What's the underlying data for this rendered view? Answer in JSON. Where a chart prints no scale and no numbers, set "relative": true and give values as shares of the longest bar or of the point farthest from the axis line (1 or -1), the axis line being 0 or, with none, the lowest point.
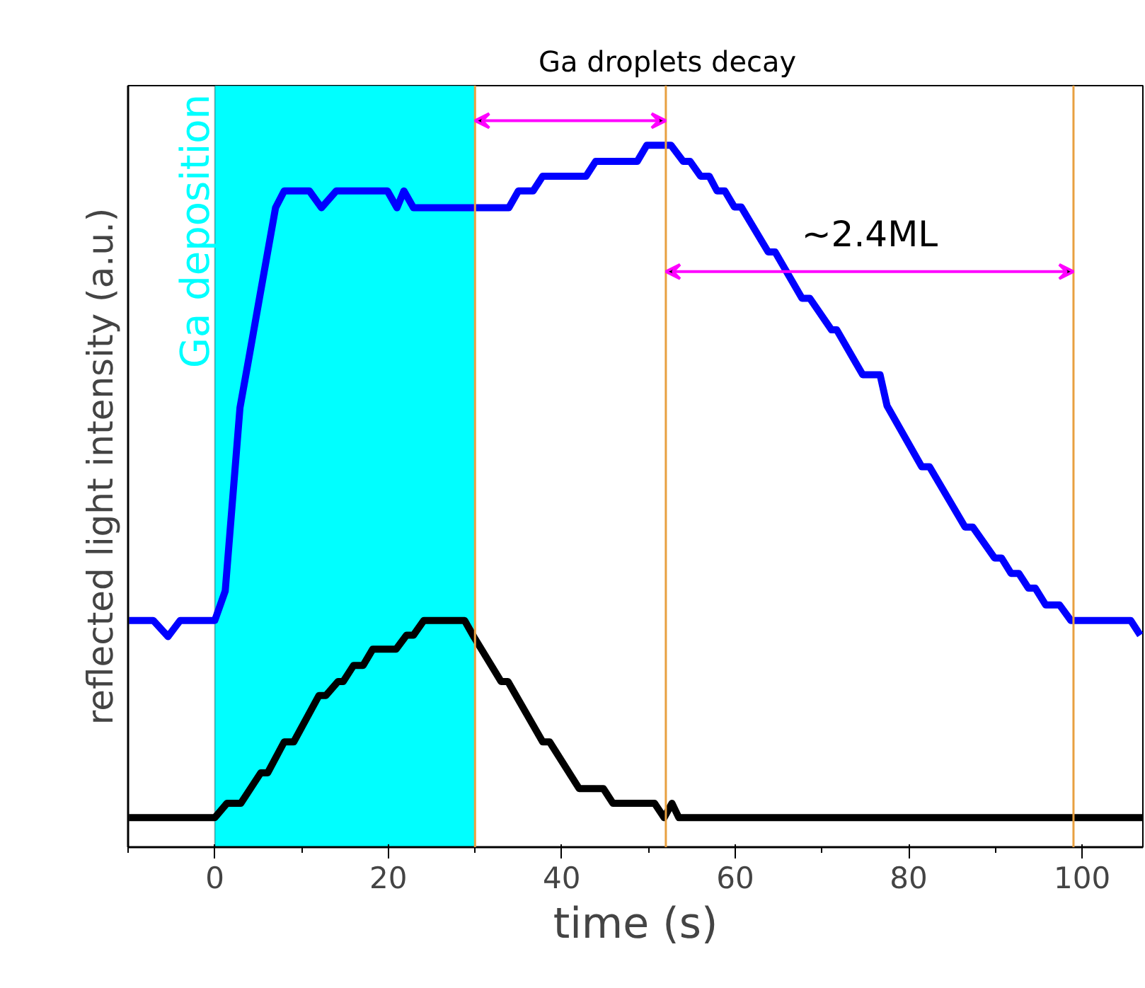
{
  "chart_data": {
    "type": "line",
    "relative": true,
    "xlabel": "time (s)",
    "ylabel": "reflected light intensity (a.u.)",
    "xlim": [
      -10,
      107
    ],
    "xticks": [
      {
        "value": -10,
        "label": null
      },
      0,
      {
        "value": 10,
        "label": null
      },
      20,
      {
        "value": 30,
        "label": null
      },
      40,
      {
        "value": 50,
        "label": null
      },
      60,
      {
        "value": 70,
        "label": null
      },
      80,
      {
        "value": 90,
        "label": null
      },
      100
    ],
    "grid": false,
    "marker": "none",
    "line_style": "solid",
    "series": [
      {
        "color": "#0000ff",
        "x": [
          -9.9,
          -7.1,
          -5.4,
          -4.0,
          0,
          1.2,
          2.9,
          3.9,
          5.2,
          7.0,
          8.0,
          10.9,
          12.3,
          14.0,
          19.9,
          21.0,
          21.8,
          22.9,
          33.9,
          35.0,
          36.7,
          37.8,
          42.8,
          43.9,
          48.7,
          49.8,
          52.6,
          54.0,
          54.8,
          56.0,
          57.0,
          57.9,
          58.8,
          59.9,
          60.7,
          63.8,
          64.6,
          67.7,
          68.6,
          71.1,
          71.7,
          74.7,
          76.7,
          77.5,
          81.5,
          82.4,
          86.5,
          87.4,
          89.9,
          90.7,
          91.8,
          92.7,
          93.8,
          94.6,
          95.8,
          97.4,
          98.7,
          105.6,
          106.7
        ],
        "values": [
          0.323,
          0.323,
          0.3,
          0.323,
          0.323,
          0.365,
          0.626,
          0.695,
          0.786,
          0.911,
          0.935,
          0.935,
          0.911,
          0.935,
          0.935,
          0.911,
          0.935,
          0.911,
          0.911,
          0.935,
          0.935,
          0.956,
          0.956,
          0.977,
          0.977,
          1.0,
          1.0,
          0.977,
          0.977,
          0.956,
          0.956,
          0.935,
          0.935,
          0.912,
          0.912,
          0.848,
          0.848,
          0.782,
          0.782,
          0.737,
          0.737,
          0.673,
          0.673,
          0.629,
          0.542,
          0.542,
          0.456,
          0.456,
          0.412,
          0.412,
          0.39,
          0.39,
          0.369,
          0.369,
          0.345,
          0.345,
          0.323,
          0.323,
          0.302
        ]
      },
      {
        "color": "#000000",
        "x": [
          -9.9,
          0,
          1.4,
          3.0,
          5.3,
          6.1,
          8.0,
          9.1,
          12.0,
          12.8,
          14.2,
          14.8,
          16.0,
          17.1,
          18.2,
          20.9,
          22.1,
          22.9,
          24.1,
          28.8,
          29.9,
          33.0,
          33.8,
          37.8,
          38.6,
          42.0,
          44.8,
          45.9,
          50.7,
          51.8,
          52.7,
          53.5,
          107
        ],
        "values": [
          0.042,
          0.042,
          0.0625,
          0.0625,
          0.106,
          0.106,
          0.15,
          0.15,
          0.216,
          0.216,
          0.236,
          0.236,
          0.259,
          0.259,
          0.282,
          0.282,
          0.302,
          0.302,
          0.323,
          0.323,
          0.299,
          0.236,
          0.236,
          0.15,
          0.15,
          0.0835,
          0.0835,
          0.0625,
          0.0625,
          0.042,
          0.0625,
          0.042,
          0.042
        ]
      }
    ],
    "bands": [
      {
        "axis": "x",
        "from": 0,
        "to": 30,
        "label": "Ga deposition",
        "color": "#00ffff"
      }
    ],
    "ref_lines": [
      {
        "axis": "x",
        "value": 30,
        "color": "#e8a040"
      },
      {
        "axis": "x",
        "value": 52,
        "color": "#e8a040"
      },
      {
        "axis": "x",
        "value": 99,
        "color": "#e8a040"
      }
    ],
    "annotations": [
      "Ga droplets decay",
      "~2.4ML"
    ]
  }
}
